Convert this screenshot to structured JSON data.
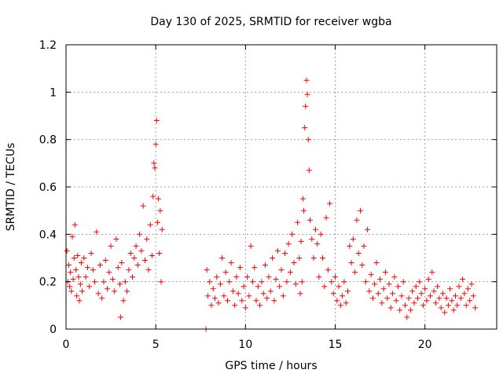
{
  "chart_data": {
    "type": "scatter",
    "title": "Day 130 of 2025, SRMTID for receiver wgba",
    "xlabel": "GPS time / hours",
    "ylabel": "SRMTID / TECUs",
    "xlim": [
      0,
      24
    ],
    "ylim": [
      0,
      1.2
    ],
    "xticks": [
      0,
      5,
      10,
      15,
      20
    ],
    "yticks": [
      0,
      0.2,
      0.4,
      0.6,
      0.8,
      1,
      1.2
    ],
    "ytick_labels": [
      "0",
      "0.2",
      "0.4",
      "0.6",
      "0.8",
      "1",
      "1.2"
    ],
    "grid": true,
    "marker": "+",
    "color": "#ff0000",
    "series": [
      {
        "name": "SRMTID",
        "points": [
          [
            0.05,
            0.33
          ],
          [
            0.1,
            0.2
          ],
          [
            0.15,
            0.27
          ],
          [
            0.2,
            0.18
          ],
          [
            0.25,
            0.24
          ],
          [
            0.3,
            0.16
          ],
          [
            0.35,
            0.39
          ],
          [
            0.4,
            0.21
          ],
          [
            0.45,
            0.3
          ],
          [
            0.5,
            0.44
          ],
          [
            0.55,
            0.25
          ],
          [
            0.6,
            0.14
          ],
          [
            0.65,
            0.31
          ],
          [
            0.7,
            0.22
          ],
          [
            0.75,
            0.12
          ],
          [
            0.8,
            0.19
          ],
          [
            0.85,
            0.28
          ],
          [
            0.9,
            0.16
          ],
          [
            1.0,
            0.3
          ],
          [
            1.1,
            0.22
          ],
          [
            1.2,
            0.26
          ],
          [
            1.3,
            0.18
          ],
          [
            1.4,
            0.32
          ],
          [
            1.5,
            0.25
          ],
          [
            1.6,
            0.2
          ],
          [
            1.7,
            0.41
          ],
          [
            1.8,
            0.15
          ],
          [
            1.9,
            0.27
          ],
          [
            2.0,
            0.13
          ],
          [
            2.1,
            0.2
          ],
          [
            2.2,
            0.29
          ],
          [
            2.3,
            0.17
          ],
          [
            2.4,
            0.24
          ],
          [
            2.5,
            0.35
          ],
          [
            2.6,
            0.21
          ],
          [
            2.7,
            0.16
          ],
          [
            2.8,
            0.38
          ],
          [
            2.9,
            0.26
          ],
          [
            3.0,
            0.19
          ],
          [
            3.05,
            0.05
          ],
          [
            3.1,
            0.28
          ],
          [
            3.2,
            0.12
          ],
          [
            3.3,
            0.2
          ],
          [
            3.4,
            0.16
          ],
          [
            3.5,
            0.25
          ],
          [
            3.6,
            0.32
          ],
          [
            3.7,
            0.22
          ],
          [
            3.8,
            0.3
          ],
          [
            3.9,
            0.35
          ],
          [
            4.0,
            0.27
          ],
          [
            4.1,
            0.4
          ],
          [
            4.2,
            0.33
          ],
          [
            4.3,
            0.52
          ],
          [
            4.4,
            0.29
          ],
          [
            4.5,
            0.38
          ],
          [
            4.6,
            0.25
          ],
          [
            4.7,
            0.44
          ],
          [
            4.8,
            0.31
          ],
          [
            4.85,
            0.56
          ],
          [
            4.9,
            0.7
          ],
          [
            4.95,
            0.68
          ],
          [
            5.0,
            0.78
          ],
          [
            5.05,
            0.88
          ],
          [
            5.1,
            0.45
          ],
          [
            5.15,
            0.55
          ],
          [
            5.2,
            0.32
          ],
          [
            5.25,
            0.5
          ],
          [
            5.3,
            0.2
          ],
          [
            5.35,
            0.42
          ],
          [
            7.8,
            0.0
          ],
          [
            7.85,
            0.25
          ],
          [
            7.9,
            0.14
          ],
          [
            8.0,
            0.2
          ],
          [
            8.1,
            0.1
          ],
          [
            8.2,
            0.17
          ],
          [
            8.3,
            0.13
          ],
          [
            8.4,
            0.22
          ],
          [
            8.5,
            0.11
          ],
          [
            8.6,
            0.19
          ],
          [
            8.7,
            0.3
          ],
          [
            8.8,
            0.14
          ],
          [
            8.9,
            0.24
          ],
          [
            9.0,
            0.12
          ],
          [
            9.1,
            0.2
          ],
          [
            9.2,
            0.28
          ],
          [
            9.3,
            0.16
          ],
          [
            9.4,
            0.1
          ],
          [
            9.5,
            0.22
          ],
          [
            9.6,
            0.15
          ],
          [
            9.7,
            0.26
          ],
          [
            9.8,
            0.12
          ],
          [
            9.9,
            0.18
          ],
          [
            10.0,
            0.09
          ],
          [
            10.1,
            0.22
          ],
          [
            10.2,
            0.14
          ],
          [
            10.3,
            0.35
          ],
          [
            10.4,
            0.2
          ],
          [
            10.5,
            0.26
          ],
          [
            10.6,
            0.12
          ],
          [
            10.7,
            0.18
          ],
          [
            10.8,
            0.1
          ],
          [
            10.9,
            0.2
          ],
          [
            11.0,
            0.15
          ],
          [
            11.1,
            0.27
          ],
          [
            11.2,
            0.13
          ],
          [
            11.3,
            0.22
          ],
          [
            11.4,
            0.16
          ],
          [
            11.5,
            0.3
          ],
          [
            11.6,
            0.12
          ],
          [
            11.7,
            0.21
          ],
          [
            11.8,
            0.33
          ],
          [
            11.9,
            0.18
          ],
          [
            12.0,
            0.25
          ],
          [
            12.1,
            0.14
          ],
          [
            12.2,
            0.32
          ],
          [
            12.3,
            0.2
          ],
          [
            12.4,
            0.36
          ],
          [
            12.5,
            0.24
          ],
          [
            12.6,
            0.4
          ],
          [
            12.7,
            0.28
          ],
          [
            12.8,
            0.19
          ],
          [
            12.9,
            0.45
          ],
          [
            13.0,
            0.3
          ],
          [
            13.05,
            0.15
          ],
          [
            13.1,
            0.37
          ],
          [
            13.15,
            0.2
          ],
          [
            13.2,
            0.55
          ],
          [
            13.25,
            0.5
          ],
          [
            13.3,
            0.85
          ],
          [
            13.35,
            0.94
          ],
          [
            13.4,
            1.05
          ],
          [
            13.45,
            0.99
          ],
          [
            13.5,
            0.8
          ],
          [
            13.55,
            0.67
          ],
          [
            13.6,
            0.46
          ],
          [
            13.7,
            0.38
          ],
          [
            13.8,
            0.3
          ],
          [
            13.9,
            0.42
          ],
          [
            14.0,
            0.36
          ],
          [
            14.1,
            0.22
          ],
          [
            14.2,
            0.4
          ],
          [
            14.3,
            0.3
          ],
          [
            14.4,
            0.18
          ],
          [
            14.5,
            0.47
          ],
          [
            14.6,
            0.25
          ],
          [
            14.7,
            0.53
          ],
          [
            14.8,
            0.2
          ],
          [
            14.9,
            0.15
          ],
          [
            15.0,
            0.22
          ],
          [
            15.1,
            0.12
          ],
          [
            15.2,
            0.18
          ],
          [
            15.3,
            0.1
          ],
          [
            15.4,
            0.14
          ],
          [
            15.5,
            0.2
          ],
          [
            15.6,
            0.11
          ],
          [
            15.7,
            0.16
          ],
          [
            15.8,
            0.35
          ],
          [
            15.9,
            0.28
          ],
          [
            16.0,
            0.38
          ],
          [
            16.1,
            0.24
          ],
          [
            16.2,
            0.46
          ],
          [
            16.3,
            0.32
          ],
          [
            16.4,
            0.5
          ],
          [
            16.5,
            0.27
          ],
          [
            16.6,
            0.35
          ],
          [
            16.7,
            0.2
          ],
          [
            16.8,
            0.42
          ],
          [
            16.9,
            0.16
          ],
          [
            17.0,
            0.23
          ],
          [
            17.1,
            0.13
          ],
          [
            17.2,
            0.19
          ],
          [
            17.3,
            0.28
          ],
          [
            17.4,
            0.15
          ],
          [
            17.5,
            0.21
          ],
          [
            17.6,
            0.11
          ],
          [
            17.7,
            0.17
          ],
          [
            17.8,
            0.24
          ],
          [
            17.9,
            0.13
          ],
          [
            18.0,
            0.19
          ],
          [
            18.1,
            0.09
          ],
          [
            18.2,
            0.15
          ],
          [
            18.3,
            0.22
          ],
          [
            18.4,
            0.12
          ],
          [
            18.5,
            0.18
          ],
          [
            18.6,
            0.08
          ],
          [
            18.7,
            0.14
          ],
          [
            18.8,
            0.2
          ],
          [
            18.9,
            0.1
          ],
          [
            19.0,
            0.05
          ],
          [
            19.1,
            0.13
          ],
          [
            19.2,
            0.08
          ],
          [
            19.3,
            0.16
          ],
          [
            19.4,
            0.11
          ],
          [
            19.5,
            0.18
          ],
          [
            19.6,
            0.13
          ],
          [
            19.7,
            0.2
          ],
          [
            19.8,
            0.15
          ],
          [
            19.9,
            0.1
          ],
          [
            20.0,
            0.17
          ],
          [
            20.1,
            0.12
          ],
          [
            20.2,
            0.21
          ],
          [
            20.3,
            0.14
          ],
          [
            20.4,
            0.24
          ],
          [
            20.5,
            0.16
          ],
          [
            20.6,
            0.11
          ],
          [
            20.7,
            0.18
          ],
          [
            20.8,
            0.13
          ],
          [
            20.9,
            0.09
          ],
          [
            21.0,
            0.15
          ],
          [
            21.1,
            0.07
          ],
          [
            21.2,
            0.13
          ],
          [
            21.3,
            0.1
          ],
          [
            21.4,
            0.17
          ],
          [
            21.5,
            0.12
          ],
          [
            21.6,
            0.08
          ],
          [
            21.7,
            0.14
          ],
          [
            21.8,
            0.1
          ],
          [
            21.9,
            0.18
          ],
          [
            22.0,
            0.13
          ],
          [
            22.1,
            0.21
          ],
          [
            22.2,
            0.15
          ],
          [
            22.3,
            0.1
          ],
          [
            22.4,
            0.17
          ],
          [
            22.5,
            0.12
          ],
          [
            22.6,
            0.19
          ],
          [
            22.7,
            0.14
          ],
          [
            22.8,
            0.09
          ]
        ]
      }
    ]
  }
}
